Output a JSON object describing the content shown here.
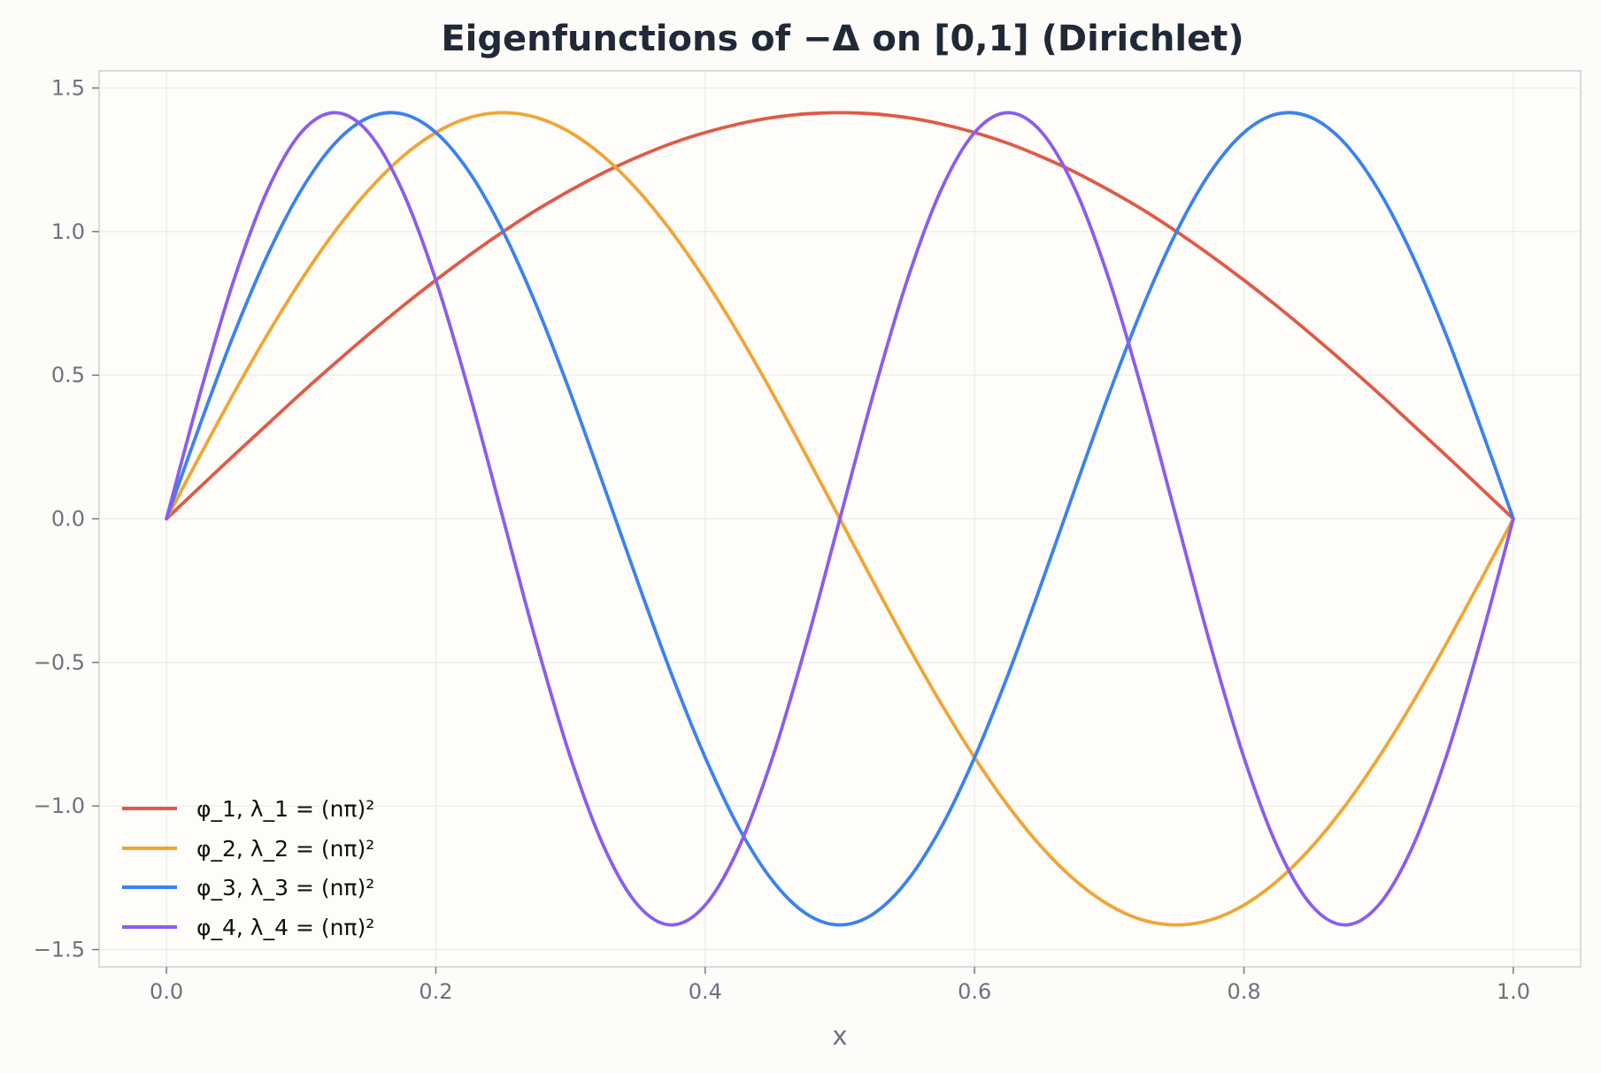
{
  "chart_data": {
    "type": "line",
    "title": "Eigenfunctions of −Δ on [0,1] (Dirichlet)",
    "xlabel": "x",
    "ylabel": "",
    "xlim": [
      -0.05,
      1.05
    ],
    "ylim": [
      -1.56,
      1.56
    ],
    "xticks": [
      0.0,
      0.2,
      0.4,
      0.6,
      0.8,
      1.0
    ],
    "xtick_labels": [
      "0.0",
      "0.2",
      "0.4",
      "0.6",
      "0.8",
      "1.0"
    ],
    "yticks": [
      -1.5,
      -1.0,
      -0.5,
      0.0,
      0.5,
      1.0,
      1.5
    ],
    "ytick_labels": [
      "−1.5",
      "−1.0",
      "−0.5",
      "0.0",
      "0.5",
      "1.0",
      "1.5"
    ],
    "grid": true,
    "legend_position": "bottom-left",
    "x": [
      0.0,
      0.025,
      0.05,
      0.075,
      0.1,
      0.125,
      0.15,
      0.175,
      0.2,
      0.225,
      0.25,
      0.275,
      0.3,
      0.325,
      0.35,
      0.375,
      0.4,
      0.425,
      0.45,
      0.475,
      0.5,
      0.525,
      0.55,
      0.575,
      0.6,
      0.625,
      0.65,
      0.675,
      0.7,
      0.725,
      0.75,
      0.775,
      0.8,
      0.825,
      0.85,
      0.875,
      0.9,
      0.925,
      0.95,
      0.975,
      1.0
    ],
    "series": [
      {
        "name": "φ_1, λ_1 = (nπ)²",
        "color": "#e05a47",
        "values": [
          0.0,
          0.111,
          0.221,
          0.329,
          0.437,
          0.541,
          0.642,
          0.739,
          0.831,
          0.918,
          1.0,
          1.076,
          1.144,
          1.206,
          1.26,
          1.307,
          1.345,
          1.375,
          1.397,
          1.41,
          1.414,
          1.41,
          1.397,
          1.375,
          1.345,
          1.307,
          1.26,
          1.206,
          1.144,
          1.076,
          1.0,
          0.918,
          0.831,
          0.739,
          0.642,
          0.541,
          0.437,
          0.329,
          0.221,
          0.111,
          0.0
        ]
      },
      {
        "name": "φ_2, λ_2 = (nπ)²",
        "color": "#f0a535",
        "values": [
          0.0,
          0.221,
          0.437,
          0.642,
          0.831,
          1.0,
          1.144,
          1.26,
          1.345,
          1.397,
          1.414,
          1.397,
          1.345,
          1.26,
          1.144,
          1.0,
          0.831,
          0.642,
          0.437,
          0.221,
          0.0,
          -0.221,
          -0.437,
          -0.642,
          -0.831,
          -1.0,
          -1.144,
          -1.26,
          -1.345,
          -1.397,
          -1.414,
          -1.397,
          -1.345,
          -1.26,
          -1.144,
          -1.0,
          -0.831,
          -0.642,
          -0.437,
          -0.221,
          0.0
        ]
      },
      {
        "name": "φ_3, λ_3 = (nπ)²",
        "color": "#3b82f0",
        "values": [
          0.0,
          0.329,
          0.642,
          0.918,
          1.144,
          1.307,
          1.397,
          1.41,
          1.345,
          1.206,
          1.0,
          0.739,
          0.437,
          0.111,
          -0.221,
          -0.541,
          -0.831,
          -1.076,
          -1.26,
          -1.375,
          -1.414,
          -1.375,
          -1.26,
          -1.076,
          -0.831,
          -0.541,
          -0.221,
          0.111,
          0.437,
          0.739,
          1.0,
          1.206,
          1.345,
          1.41,
          1.397,
          1.307,
          1.144,
          0.918,
          0.642,
          0.329,
          0.0
        ]
      },
      {
        "name": "φ_4, λ_4 = (nπ)²",
        "color": "#8b5cf0",
        "values": [
          0.0,
          0.437,
          0.831,
          1.144,
          1.345,
          1.414,
          1.345,
          1.144,
          0.831,
          0.437,
          0.0,
          -0.437,
          -0.831,
          -1.144,
          -1.345,
          -1.414,
          -1.345,
          -1.144,
          -0.831,
          -0.437,
          0.0,
          0.437,
          0.831,
          1.144,
          1.345,
          1.414,
          1.345,
          1.144,
          0.831,
          0.437,
          0.0,
          -0.437,
          -0.831,
          -1.144,
          -1.345,
          -1.414,
          -1.345,
          -1.144,
          -0.831,
          -0.437,
          0.0
        ]
      }
    ]
  }
}
